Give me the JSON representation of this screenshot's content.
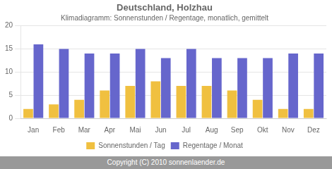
{
  "chart_data": {
    "type": "bar",
    "title": "Deutschland, Holzhau",
    "subtitle": "Klimadiagramm: Sonnenstunden / Regentage, monatlich, gemittelt",
    "footer": "Copyright (C) 2010 sonnenlaender.de",
    "categories": [
      "Jan",
      "Feb",
      "Mar",
      "Apr",
      "Mai",
      "Jun",
      "Jul",
      "Aug",
      "Sep",
      "Okt",
      "Nov",
      "Dez"
    ],
    "series": [
      {
        "name": "Sonnenstunden / Tag",
        "color": "#F0C040",
        "values": [
          2,
          3,
          4,
          6,
          7,
          8,
          7,
          7,
          6,
          4,
          2,
          2
        ]
      },
      {
        "name": "Regentage / Monat",
        "color": "#6666CC",
        "values": [
          16,
          15,
          14,
          14,
          15,
          13,
          15,
          13,
          13,
          13,
          14,
          14
        ]
      }
    ],
    "ylim": [
      0,
      20
    ],
    "yticks": [
      0,
      5,
      10,
      15,
      20
    ],
    "grid": true,
    "legend": "bottom"
  }
}
